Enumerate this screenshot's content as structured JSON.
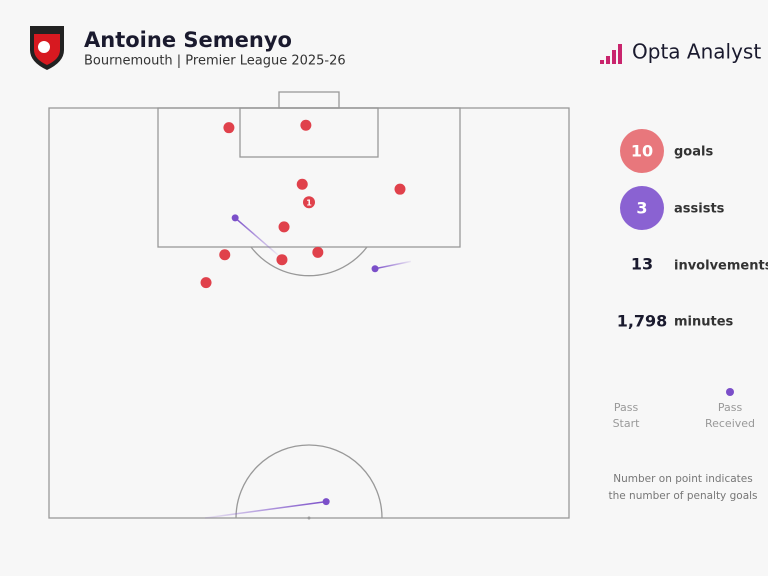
{
  "header": {
    "title": "Antoine Semenyo",
    "subtitle": "Bournemouth | Premier League 2025-26",
    "brand": "Opta Analyst"
  },
  "stats": [
    {
      "value": "10",
      "label": "goals"
    },
    {
      "value": "3",
      "label": "assists"
    },
    {
      "value": "13",
      "label": "involvements"
    },
    {
      "value": "1,798",
      "label": "minutes"
    }
  ],
  "legend": {
    "start": [
      "Pass",
      "Start"
    ],
    "received": [
      "Pass",
      "Received"
    ]
  },
  "note": [
    "Number on point indicates",
    "the number of penalty goals"
  ],
  "chart_data": {
    "type": "pitch",
    "goals": {
      "color": "#e0414b",
      "x": [
        34.6,
        49.4,
        48.7,
        67.5,
        50.0,
        45.2,
        33.8,
        44.8,
        51.7,
        30.2
      ],
      "y": [
        2.4,
        2.1,
        9.3,
        9.9,
        11.5,
        14.5,
        17.9,
        18.5,
        17.6,
        21.3
      ],
      "penalties": [
        null,
        null,
        null,
        null,
        1,
        null,
        null,
        null,
        null,
        null
      ]
    },
    "assists": {
      "color": "#7b4fc9",
      "start_x": [
        44.0,
        69.6,
        30.0
      ],
      "start_y": [
        17.9,
        18.7,
        50.0
      ],
      "end_x": [
        35.8,
        62.7,
        53.3
      ],
      "end_y": [
        13.4,
        19.6,
        48.0
      ]
    },
    "xlim": [
      0,
      100
    ],
    "ylim": [
      0,
      50
    ]
  }
}
